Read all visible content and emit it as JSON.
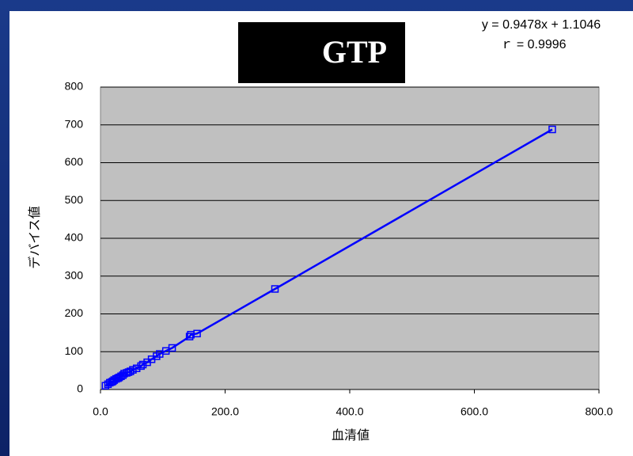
{
  "chart_data": {
    "type": "scatter",
    "title": "GTP",
    "annotations": [
      "y = 0.9478x + 1.1046",
      "ｒ = 0.9996"
    ],
    "x_label": "血清値",
    "y_label": "デバイス値",
    "series": [
      {
        "color": "#0000ff",
        "x": [
          8,
          12,
          15,
          18,
          20,
          22,
          25,
          28,
          30,
          33,
          36,
          38,
          42,
          45,
          48,
          52,
          58,
          65,
          68,
          75,
          82,
          90,
          95,
          105,
          115,
          143,
          145,
          155,
          280,
          725
        ],
        "values": [
          10,
          14,
          18,
          20,
          22,
          25,
          28,
          30,
          32,
          35,
          38,
          42,
          44,
          46,
          48,
          52,
          56,
          62,
          66,
          72,
          80,
          88,
          94,
          102,
          110,
          140,
          145,
          148,
          266,
          688
        ]
      }
    ],
    "xlim": [
      0,
      800
    ],
    "xticks": [
      {
        "value": 0,
        "label": "0.0"
      },
      {
        "value": 200,
        "label": "200.0"
      },
      {
        "value": 400,
        "label": "400.0"
      },
      {
        "value": 600,
        "label": "600.0"
      },
      {
        "value": 800,
        "label": "800.0"
      }
    ],
    "ylim": [
      0,
      800
    ],
    "yticks": [
      0,
      100,
      200,
      300,
      400,
      500,
      600,
      700,
      800
    ],
    "grid": true
  }
}
